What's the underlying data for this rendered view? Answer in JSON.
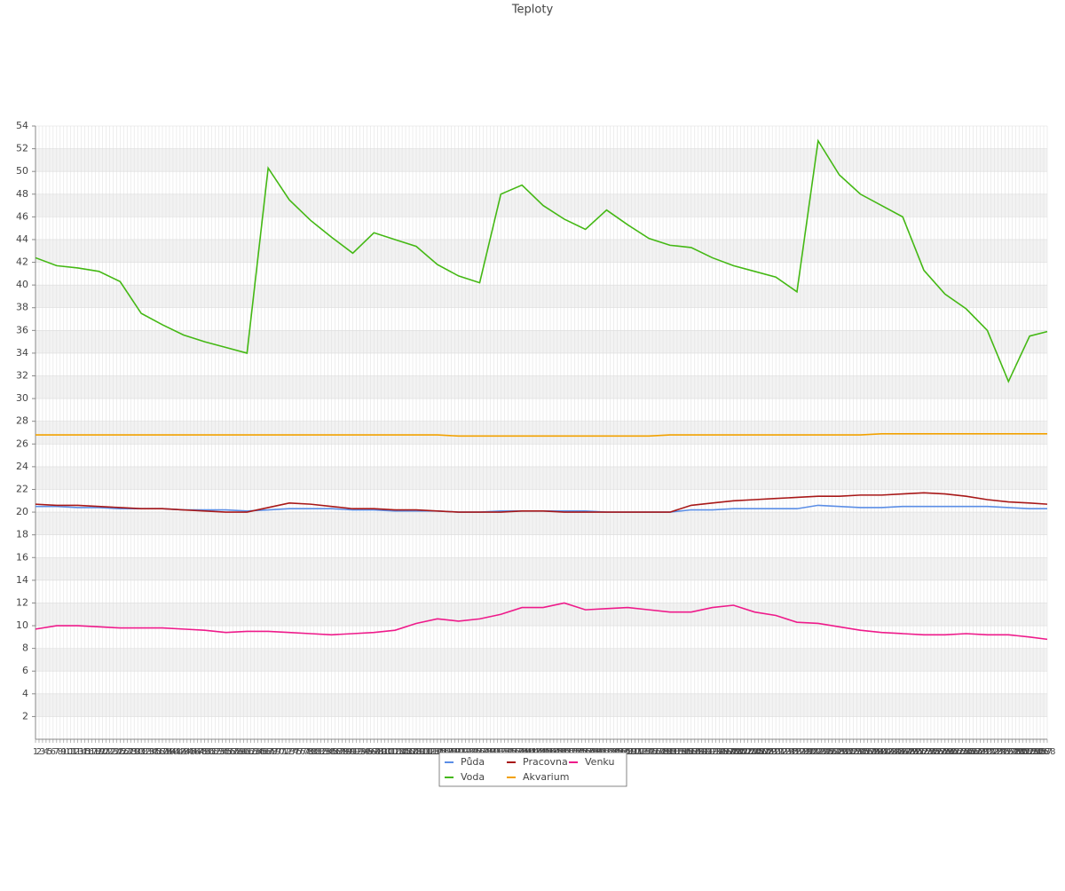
{
  "chart_data": {
    "type": "line",
    "title": "Teploty",
    "x": [
      1,
      7,
      13,
      19,
      25,
      31,
      37,
      43,
      49,
      55,
      61,
      67,
      73,
      79,
      85,
      91,
      97,
      103,
      109,
      115,
      121,
      127,
      133,
      139,
      145,
      151,
      157,
      163,
      169,
      175,
      181,
      187,
      193,
      199,
      205,
      211,
      217,
      223,
      229,
      235,
      241,
      247,
      253,
      259,
      265,
      271,
      277,
      283,
      288
    ],
    "xlim": [
      1,
      288
    ],
    "xticks": [
      1,
      2,
      3,
      4,
      5,
      6,
      7,
      8,
      9,
      10,
      11,
      12,
      13,
      14,
      15,
      16,
      17,
      18,
      19,
      20,
      21,
      22,
      23,
      24,
      25,
      26,
      27,
      28,
      29,
      30,
      31,
      32,
      33,
      34,
      35,
      36,
      37,
      38,
      39,
      40,
      41,
      42,
      43,
      44,
      45,
      46,
      47,
      48,
      49,
      50,
      51,
      52,
      53,
      54,
      55,
      56,
      57,
      58,
      59,
      60,
      61,
      62,
      63,
      64,
      65,
      66,
      67,
      68,
      69,
      70,
      71,
      72,
      73,
      74,
      75,
      76,
      77,
      78,
      79,
      80,
      81,
      82,
      83,
      84,
      85,
      86,
      87,
      88,
      89,
      90,
      91,
      92,
      93,
      94,
      95,
      96,
      97,
      98,
      99,
      100,
      101,
      102,
      103,
      104,
      105,
      106,
      107,
      108,
      109,
      110,
      111,
      112,
      113,
      114,
      115,
      116,
      117,
      118,
      119,
      120,
      121,
      122,
      123,
      124,
      125,
      126,
      127,
      128,
      129,
      130,
      131,
      132,
      133,
      134,
      135,
      136,
      137,
      138,
      139,
      140,
      141,
      142,
      143,
      144,
      145,
      146,
      147,
      148,
      149,
      150,
      151,
      152,
      153,
      154,
      155,
      156,
      157,
      158,
      159,
      160,
      161,
      162,
      163,
      164,
      165,
      166,
      167,
      168,
      169,
      170,
      171,
      172,
      173,
      174,
      175,
      176,
      177,
      178,
      179,
      180,
      181,
      182,
      183,
      184,
      185,
      186,
      187,
      188,
      189,
      190,
      191,
      192,
      193,
      194,
      195,
      196,
      197,
      198,
      199,
      200,
      201,
      202,
      203,
      204,
      205,
      206,
      207,
      208,
      209,
      210,
      211,
      212,
      213,
      214,
      215,
      216,
      217,
      218,
      219,
      220,
      221,
      222,
      223,
      224,
      225,
      226,
      227,
      228,
      229,
      230,
      231,
      232,
      233,
      234,
      235,
      236,
      237,
      238,
      239,
      240,
      241,
      242,
      243,
      244,
      245,
      246,
      247,
      248,
      249,
      250,
      251,
      252,
      253,
      254,
      255,
      256,
      257,
      258,
      259,
      260,
      261,
      262,
      263,
      264,
      265,
      266,
      267,
      268,
      269,
      270,
      271,
      272,
      273,
      274,
      275,
      276,
      277,
      278,
      279,
      280,
      281,
      282,
      283,
      284,
      285,
      286,
      287,
      288
    ],
    "ylim": [
      0,
      54
    ],
    "yticks": [
      2,
      4,
      6,
      8,
      10,
      12,
      14,
      16,
      18,
      20,
      22,
      24,
      26,
      28,
      30,
      32,
      34,
      36,
      38,
      40,
      42,
      44,
      46,
      48,
      50,
      52,
      54
    ],
    "grid": true,
    "series": [
      {
        "name": "Půda",
        "color": "#5b8ee6",
        "values": [
          20.5,
          20.5,
          20.4,
          20.4,
          20.3,
          20.3,
          20.3,
          20.2,
          20.2,
          20.2,
          20.1,
          20.2,
          20.3,
          20.3,
          20.3,
          20.2,
          20.2,
          20.1,
          20.1,
          20.1,
          20.0,
          20.0,
          20.1,
          20.1,
          20.1,
          20.1,
          20.1,
          20.0,
          20.0,
          20.0,
          20.0,
          20.2,
          20.2,
          20.3,
          20.3,
          20.3,
          20.3,
          20.6,
          20.5,
          20.4,
          20.4,
          20.5,
          20.5,
          20.5,
          20.5,
          20.5,
          20.4,
          20.3,
          20.3
        ]
      },
      {
        "name": "Voda",
        "color": "#44b814",
        "values": [
          42.4,
          41.7,
          41.5,
          41.2,
          40.3,
          37.5,
          36.5,
          35.6,
          35.0,
          34.5,
          34.0,
          50.3,
          47.5,
          45.7,
          44.2,
          42.8,
          44.6,
          44.0,
          43.4,
          41.8,
          40.8,
          40.2,
          48.0,
          48.8,
          47.0,
          45.8,
          44.9,
          46.6,
          45.3,
          44.1,
          43.5,
          43.3,
          42.4,
          41.7,
          41.2,
          40.7,
          39.4,
          52.7,
          49.7,
          48.0,
          47.0,
          46.0,
          41.3,
          39.2,
          37.9,
          36.0,
          31.5,
          35.5,
          35.9
        ]
      },
      {
        "name": "Pracovna",
        "color": "#a81818",
        "values": [
          20.7,
          20.6,
          20.6,
          20.5,
          20.4,
          20.3,
          20.3,
          20.2,
          20.1,
          20.0,
          20.0,
          20.4,
          20.8,
          20.7,
          20.5,
          20.3,
          20.3,
          20.2,
          20.2,
          20.1,
          20.0,
          20.0,
          20.0,
          20.1,
          20.1,
          20.0,
          20.0,
          20.0,
          20.0,
          20.0,
          20.0,
          20.6,
          20.8,
          21.0,
          21.1,
          21.2,
          21.3,
          21.4,
          21.4,
          21.5,
          21.5,
          21.6,
          21.7,
          21.6,
          21.4,
          21.1,
          20.9,
          20.8,
          20.7
        ]
      },
      {
        "name": "Akvarium",
        "color": "#f2a100",
        "values": [
          26.8,
          26.8,
          26.8,
          26.8,
          26.8,
          26.8,
          26.8,
          26.8,
          26.8,
          26.8,
          26.8,
          26.8,
          26.8,
          26.8,
          26.8,
          26.8,
          26.8,
          26.8,
          26.8,
          26.8,
          26.7,
          26.7,
          26.7,
          26.7,
          26.7,
          26.7,
          26.7,
          26.7,
          26.7,
          26.7,
          26.8,
          26.8,
          26.8,
          26.8,
          26.8,
          26.8,
          26.8,
          26.8,
          26.8,
          26.8,
          26.9,
          26.9,
          26.9,
          26.9,
          26.9,
          26.9,
          26.9,
          26.9,
          26.9
        ]
      },
      {
        "name": "Venku",
        "color": "#ee1a8a",
        "values": [
          9.7,
          10.0,
          10.0,
          9.9,
          9.8,
          9.8,
          9.8,
          9.7,
          9.6,
          9.4,
          9.5,
          9.5,
          9.4,
          9.3,
          9.2,
          9.3,
          9.4,
          9.6,
          10.2,
          10.6,
          10.4,
          10.6,
          11.0,
          11.6,
          11.6,
          12.0,
          11.4,
          11.5,
          11.6,
          11.4,
          11.2,
          11.2,
          11.6,
          11.8,
          11.2,
          10.9,
          10.3,
          10.2,
          9.9,
          9.6,
          9.4,
          9.3,
          9.2,
          9.2,
          9.3,
          9.2,
          9.2,
          9.0,
          8.8
        ]
      }
    ]
  }
}
